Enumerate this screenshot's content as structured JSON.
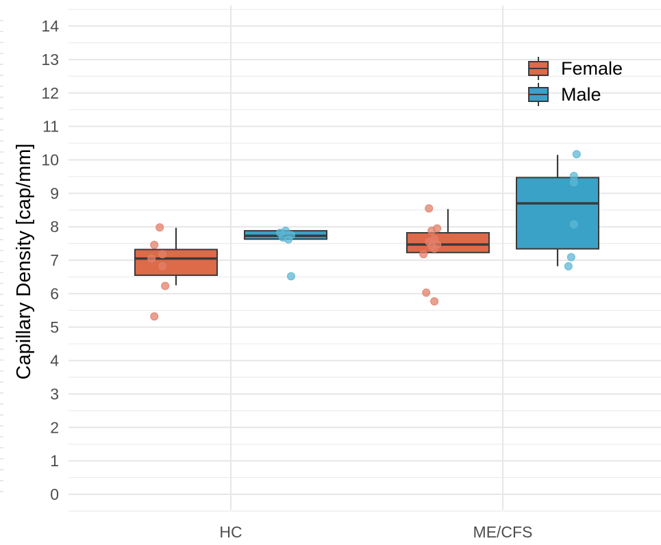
{
  "chart_data": {
    "type": "box",
    "title": "",
    "xlabel": "",
    "ylabel": "Capillary Density [cap/mm]",
    "ylim": [
      -0.5,
      14.5
    ],
    "yticks": [
      0,
      1,
      2,
      3,
      4,
      5,
      6,
      7,
      8,
      9,
      10,
      11,
      12,
      13,
      14
    ],
    "categories": [
      "HC",
      "ME/CFS"
    ],
    "grid": true,
    "legend_position": "top-right",
    "series": [
      {
        "name": "Female",
        "color": "#dd6a49",
        "point_color": "#e2806a",
        "boxes": [
          {
            "q1": 6.55,
            "median": 7.05,
            "q3": 7.32,
            "whisker_low": 6.25,
            "whisker_high": 7.97,
            "points": [
              7.98,
              7.46,
              7.18,
              7.05,
              6.82,
              6.23,
              5.32
            ],
            "jitter": [
              -0.06,
              -0.08,
              -0.05,
              -0.09,
              -0.05,
              -0.04,
              -0.08
            ]
          },
          {
            "q1": 7.23,
            "median": 7.47,
            "q3": 7.82,
            "whisker_low": 7.23,
            "whisker_high": 8.53,
            "points": [
              8.55,
              7.95,
              7.88,
              7.63,
              7.55,
              7.47,
              7.42,
              7.35,
              7.18,
              6.03,
              5.77
            ],
            "jitter": [
              -0.07,
              -0.04,
              -0.06,
              -0.05,
              -0.07,
              -0.04,
              -0.06,
              -0.05,
              -0.09,
              -0.08,
              -0.05
            ]
          }
        ]
      },
      {
        "name": "Male",
        "color": "#3aa2c6",
        "point_color": "#5db7d5",
        "boxes": [
          {
            "q1": 7.63,
            "median": 7.73,
            "q3": 7.88,
            "whisker_low": 7.63,
            "whisker_high": 7.88,
            "points": [
              7.88,
              7.82,
              7.75,
              7.68,
              7.62,
              6.52
            ],
            "jitter": [
              0.0,
              -0.02,
              0.02,
              -0.01,
              0.01,
              0.02
            ]
          },
          {
            "q1": 7.34,
            "median": 8.7,
            "q3": 9.47,
            "whisker_low": 6.82,
            "whisker_high": 10.15,
            "points": [
              10.17,
              9.52,
              9.33,
              8.07,
              7.09,
              6.82
            ],
            "jitter": [
              0.07,
              0.06,
              0.06,
              0.06,
              0.05,
              0.04
            ]
          }
        ]
      }
    ]
  }
}
